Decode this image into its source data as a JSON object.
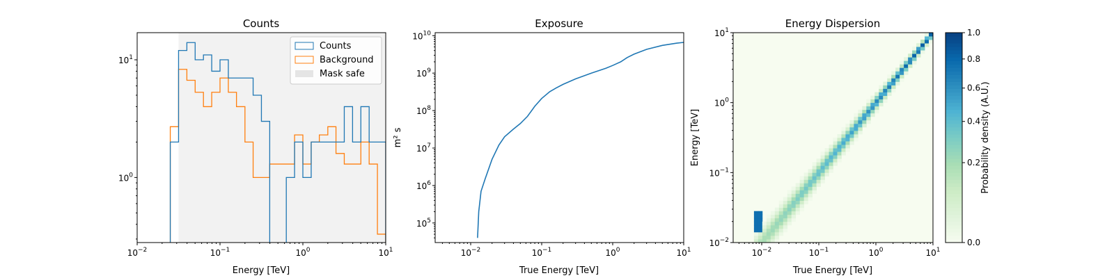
{
  "colors": {
    "counts": "#1f77b4",
    "background": "#ff7f0e",
    "mask": "#f2f2f2"
  },
  "chart_data": [
    {
      "type": "step-histogram",
      "title": "Counts",
      "xlabel": "Energy [TeV]",
      "ylabel": "",
      "xscale": "log",
      "yscale": "log",
      "xlim": [
        0.01,
        10
      ],
      "ylim": [
        0.28,
        17
      ],
      "x_ticks": [
        "10^{-2}",
        "10^{-1}",
        "10^{0}",
        "10^{1}"
      ],
      "y_ticks": [
        "10^{0}",
        "10^{1}"
      ],
      "mask_safe_range": [
        0.0316,
        10
      ],
      "legend": {
        "position": "top-right",
        "items": [
          "Counts",
          "Background",
          "Mask safe"
        ]
      },
      "bin_edges": [
        0.0251,
        0.0316,
        0.0398,
        0.0501,
        0.0631,
        0.0794,
        0.1,
        0.126,
        0.158,
        0.2,
        0.251,
        0.316,
        0.398,
        0.501,
        0.631,
        0.794,
        1.0,
        1.26,
        1.58,
        2.0,
        2.51,
        3.16,
        3.98,
        5.01,
        6.31,
        7.94,
        10.0
      ],
      "series": [
        {
          "name": "Counts",
          "values": [
            2,
            12,
            14,
            10,
            11,
            8,
            10,
            7,
            7,
            7,
            5,
            3,
            0,
            0,
            1,
            2,
            1,
            2,
            2,
            2,
            2,
            4,
            2,
            4,
            2,
            2
          ]
        },
        {
          "name": "Background",
          "values": [
            2.7,
            8.3,
            6.7,
            5.3,
            4.0,
            5.3,
            7.0,
            5.3,
            4.0,
            2.0,
            1.0,
            1.0,
            1.3,
            1.3,
            1.3,
            2.3,
            1.3,
            2.0,
            2.3,
            2.7,
            1.6,
            1.3,
            1.3,
            2.0,
            1.3,
            0.33
          ]
        }
      ]
    },
    {
      "type": "line",
      "title": "Exposure",
      "xlabel": "True Energy [TeV]",
      "ylabel": "m² s",
      "xscale": "log",
      "yscale": "log",
      "xlim": [
        0.00316,
        10
      ],
      "ylim": [
        30000.0,
        12000000000.0
      ],
      "x_ticks": [
        "10^{-2}",
        "10^{-1}",
        "10^{0}",
        "10^{1}"
      ],
      "y_ticks": [
        "10^{5}",
        "10^{6}",
        "10^{7}",
        "10^{8}",
        "10^{9}",
        "10^{10}"
      ],
      "series": [
        {
          "name": "Exposure",
          "x": [
            0.0125,
            0.013,
            0.014,
            0.016,
            0.02,
            0.025,
            0.03,
            0.04,
            0.05,
            0.063,
            0.08,
            0.1,
            0.13,
            0.16,
            0.2,
            0.3,
            0.5,
            0.8,
            1.0,
            1.3,
            1.6,
            2.0,
            3.0,
            5.0,
            8.0,
            10.0
          ],
          "y": [
            40000.0,
            200000.0,
            700000.0,
            1500000.0,
            5000000.0,
            12000000.0,
            20000000.0,
            32000000.0,
            45000000.0,
            70000000.0,
            130000000.0,
            210000000.0,
            320000000.0,
            400000000.0,
            500000000.0,
            700000000.0,
            1000000000.0,
            1350000000.0,
            1600000000.0,
            2000000000.0,
            2600000000.0,
            3200000000.0,
            4300000000.0,
            5500000000.0,
            6300000000.0,
            6600000000.0
          ]
        }
      ]
    },
    {
      "type": "heatmap",
      "title": "Energy Dispersion",
      "xlabel": "True Energy [TeV]",
      "ylabel": "Energy [TeV]",
      "xscale": "log",
      "yscale": "log",
      "xlim": [
        0.00316,
        10
      ],
      "ylim": [
        0.01,
        10
      ],
      "x_ticks": [
        "10^{-2}",
        "10^{-1}",
        "10^{0}",
        "10^{1}"
      ],
      "y_ticks": [
        "10^{-2}",
        "10^{-1}",
        "10^{0}",
        "10^{1}"
      ],
      "colormap": "GnBu",
      "colorbar": {
        "label": "Probability density (A.U.)",
        "range": [
          0,
          1.0
        ],
        "ticks": [
          "0.0",
          "0.2",
          "0.4",
          "0.6",
          "0.8",
          "1.0"
        ]
      },
      "x_range_nonzero": [
        0.0079,
        10
      ],
      "diagonal": "reco energy ≈ true energy, width narrowing with energy"
    }
  ]
}
